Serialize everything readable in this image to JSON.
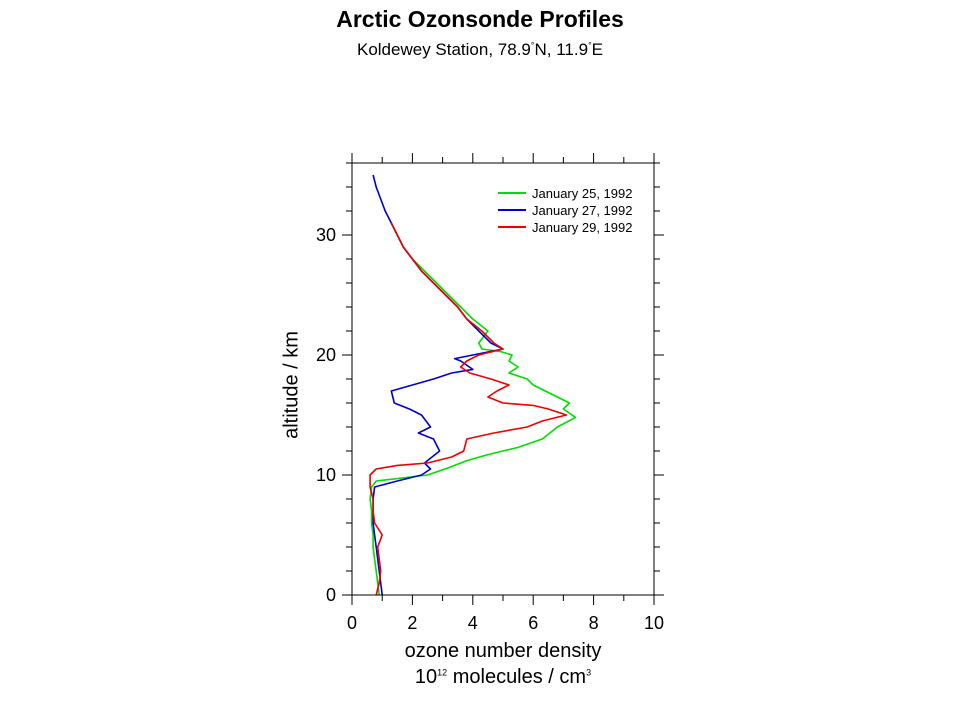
{
  "chart_data": {
    "type": "line",
    "title": "Arctic Ozonsonde Profiles",
    "subtitle": {
      "prefix": "Koldewey Station, 78.9",
      "lat_deg": "°",
      "mid": "N, 11.9",
      "lon_deg": "°",
      "suffix": "E"
    },
    "xlabel": "ozone number density",
    "xunit": {
      "base": "10",
      "exp": "12",
      "text": " molecules / cm",
      "unit_exp": "3"
    },
    "ylabel": "altitude / km",
    "xlim": [
      0,
      10
    ],
    "ylim": [
      0,
      36
    ],
    "x_ticks": [
      0,
      2,
      4,
      6,
      8,
      10
    ],
    "y_ticks": [
      0,
      10,
      20,
      30
    ],
    "legend_position": "top-right",
    "grid": false,
    "series": [
      {
        "name": "January 25, 1992",
        "color": "#00dd00",
        "points": [
          [
            0.9,
            0
          ],
          [
            0.85,
            1
          ],
          [
            0.8,
            2
          ],
          [
            0.75,
            3
          ],
          [
            0.7,
            4
          ],
          [
            0.7,
            5
          ],
          [
            0.65,
            6
          ],
          [
            0.65,
            7
          ],
          [
            0.6,
            8
          ],
          [
            0.65,
            9
          ],
          [
            0.8,
            9.5
          ],
          [
            1.5,
            9.7
          ],
          [
            2.5,
            10
          ],
          [
            3.2,
            10.6
          ],
          [
            3.8,
            11.2
          ],
          [
            4.5,
            11.7
          ],
          [
            5.5,
            12.3
          ],
          [
            6.3,
            13
          ],
          [
            6.8,
            14
          ],
          [
            7.4,
            14.8
          ],
          [
            7.0,
            15.5
          ],
          [
            7.2,
            16
          ],
          [
            6.8,
            16.5
          ],
          [
            6.4,
            17
          ],
          [
            6.0,
            17.5
          ],
          [
            5.8,
            18
          ],
          [
            5.2,
            18.5
          ],
          [
            5.5,
            19
          ],
          [
            5.2,
            19.5
          ],
          [
            5.3,
            20
          ],
          [
            4.9,
            20.3
          ],
          [
            4.3,
            20.5
          ],
          [
            4.2,
            21
          ],
          [
            4.5,
            22
          ],
          [
            4.0,
            23
          ],
          [
            3.6,
            24
          ],
          [
            3.2,
            25
          ],
          [
            2.8,
            26
          ],
          [
            2.4,
            27
          ],
          [
            2.0,
            28
          ],
          [
            1.7,
            29
          ],
          [
            1.5,
            30
          ],
          [
            1.3,
            31
          ]
        ]
      },
      {
        "name": "January 27, 1992",
        "color": "#0000cc",
        "points": [
          [
            1.0,
            0
          ],
          [
            0.95,
            1
          ],
          [
            0.9,
            2
          ],
          [
            0.85,
            3
          ],
          [
            0.8,
            4
          ],
          [
            0.75,
            5
          ],
          [
            0.7,
            6
          ],
          [
            0.7,
            7
          ],
          [
            0.7,
            8
          ],
          [
            0.75,
            9
          ],
          [
            1.5,
            9.5
          ],
          [
            2.3,
            10
          ],
          [
            2.6,
            10.5
          ],
          [
            2.4,
            11
          ],
          [
            2.9,
            12
          ],
          [
            2.7,
            13
          ],
          [
            2.2,
            13.5
          ],
          [
            2.6,
            14
          ],
          [
            2.3,
            15
          ],
          [
            1.9,
            15.5
          ],
          [
            1.4,
            16
          ],
          [
            1.3,
            17
          ],
          [
            2.0,
            17.5
          ],
          [
            2.7,
            18
          ],
          [
            3.3,
            18.5
          ],
          [
            4.0,
            18.8
          ],
          [
            3.6,
            19.5
          ],
          [
            3.4,
            19.7
          ],
          [
            4.0,
            20
          ],
          [
            5.0,
            20.5
          ],
          [
            4.6,
            21
          ],
          [
            4.2,
            22
          ],
          [
            3.8,
            23
          ],
          [
            3.5,
            24
          ],
          [
            3.1,
            25
          ],
          [
            2.7,
            26
          ],
          [
            2.3,
            27
          ],
          [
            2.0,
            28
          ],
          [
            1.7,
            29
          ],
          [
            1.5,
            30
          ],
          [
            1.3,
            31
          ],
          [
            1.1,
            32
          ],
          [
            0.95,
            33
          ],
          [
            0.8,
            34
          ],
          [
            0.7,
            35
          ]
        ]
      },
      {
        "name": "January 29, 1992",
        "color": "#ee0000",
        "points": [
          [
            0.8,
            0
          ],
          [
            0.9,
            1
          ],
          [
            0.95,
            2
          ],
          [
            0.9,
            3
          ],
          [
            0.85,
            4
          ],
          [
            1.0,
            5
          ],
          [
            0.75,
            6
          ],
          [
            0.7,
            7
          ],
          [
            0.7,
            8
          ],
          [
            0.6,
            9
          ],
          [
            0.6,
            9.5
          ],
          [
            0.6,
            10
          ],
          [
            0.8,
            10.5
          ],
          [
            1.5,
            10.8
          ],
          [
            2.5,
            11
          ],
          [
            3.3,
            11.5
          ],
          [
            3.7,
            12
          ],
          [
            3.8,
            13
          ],
          [
            4.7,
            13.5
          ],
          [
            5.8,
            14
          ],
          [
            6.3,
            14.5
          ],
          [
            7.1,
            15
          ],
          [
            6.5,
            15.5
          ],
          [
            6.0,
            15.8
          ],
          [
            5.0,
            16
          ],
          [
            4.5,
            16.5
          ],
          [
            4.8,
            17
          ],
          [
            5.2,
            17.5
          ],
          [
            4.6,
            18
          ],
          [
            3.9,
            18.5
          ],
          [
            3.6,
            19
          ],
          [
            3.8,
            19.5
          ],
          [
            4.2,
            20
          ],
          [
            5.0,
            20.5
          ],
          [
            4.7,
            21
          ],
          [
            4.3,
            22
          ],
          [
            3.8,
            23
          ],
          [
            3.5,
            24
          ],
          [
            3.1,
            25
          ],
          [
            2.7,
            26
          ],
          [
            2.3,
            27
          ],
          [
            2.0,
            28
          ],
          [
            1.7,
            29
          ],
          [
            1.5,
            30
          ],
          [
            1.3,
            31
          ]
        ]
      }
    ]
  }
}
